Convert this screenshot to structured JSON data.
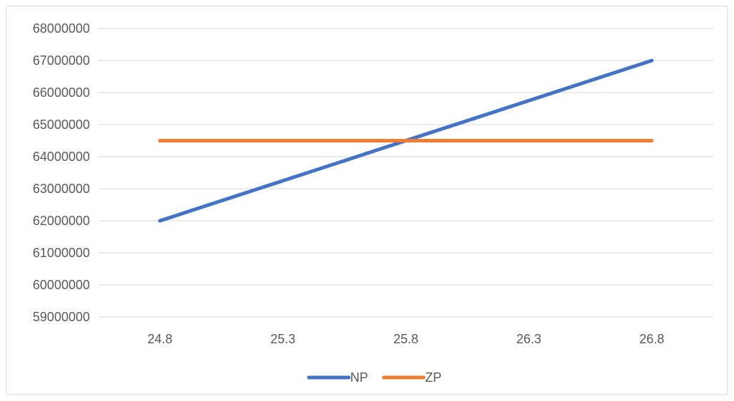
{
  "chart_data": {
    "type": "line",
    "title": "",
    "xlabel": "",
    "ylabel": "",
    "x": [
      24.8,
      25.3,
      25.8,
      26.3,
      26.8
    ],
    "x_tick_labels": [
      "24.8",
      "25.3",
      "25.8",
      "26.3",
      "26.8"
    ],
    "ylim": [
      59000000,
      68000000
    ],
    "y_ticks": [
      59000000,
      60000000,
      61000000,
      62000000,
      63000000,
      64000000,
      65000000,
      66000000,
      67000000,
      68000000
    ],
    "y_tick_labels": [
      "59000000",
      "60000000",
      "61000000",
      "62000000",
      "63000000",
      "64000000",
      "65000000",
      "66000000",
      "67000000",
      "68000000"
    ],
    "grid": "horizontal",
    "legend_position": "bottom",
    "series": [
      {
        "name": "NP",
        "color": "#4472C4",
        "x": [
          24.8,
          26.8
        ],
        "values": [
          62000000,
          67000000
        ]
      },
      {
        "name": "ZP",
        "color": "#ED7D31",
        "x": [
          24.8,
          26.8
        ],
        "values": [
          64500000,
          64500000
        ]
      }
    ]
  }
}
